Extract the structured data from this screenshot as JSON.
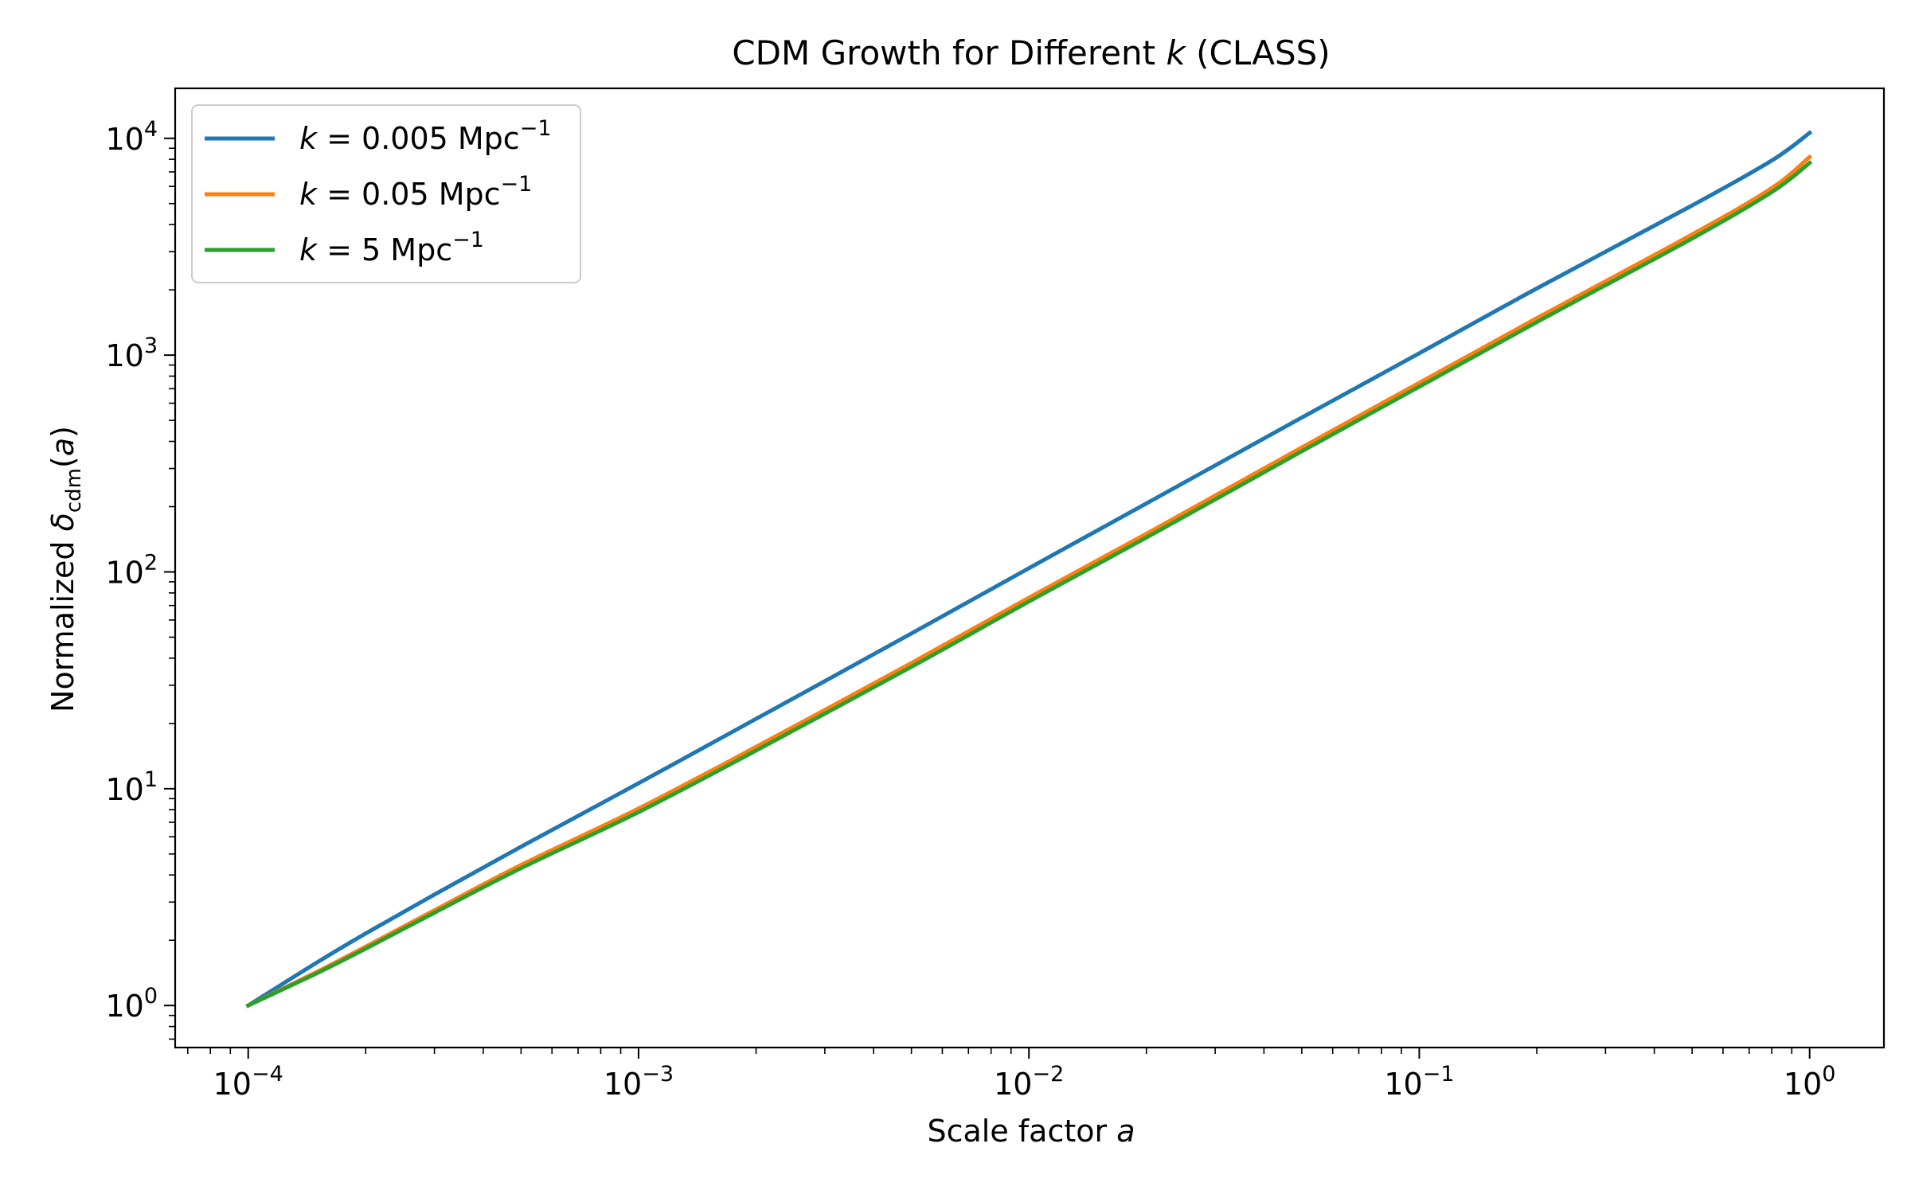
{
  "chart_data": {
    "type": "line",
    "title": {
      "pre": "CDM Growth for Different ",
      "var": "k",
      "post": " (CLASS)"
    },
    "xlabel": {
      "pre": "Scale factor ",
      "var": "a"
    },
    "ylabel": {
      "pre": "Normalized ",
      "sym": "δ",
      "sub": "cdm",
      "post": "(",
      "var": "a",
      "close": ")"
    },
    "xscale": "log",
    "yscale": "log",
    "xlim": [
      6.5e-05,
      1.55
    ],
    "ylim": [
      0.64,
      17000
    ],
    "x_ticks": [
      {
        "value": 0.0001,
        "base": "10",
        "exp": "−4"
      },
      {
        "value": 0.001,
        "base": "10",
        "exp": "−3"
      },
      {
        "value": 0.01,
        "base": "10",
        "exp": "−2"
      },
      {
        "value": 0.1,
        "base": "10",
        "exp": "−1"
      },
      {
        "value": 1,
        "base": "10",
        "exp": "0"
      }
    ],
    "y_ticks": [
      {
        "value": 1,
        "base": "10",
        "exp": "0"
      },
      {
        "value": 10,
        "base": "10",
        "exp": "1"
      },
      {
        "value": 100,
        "base": "10",
        "exp": "2"
      },
      {
        "value": 1000,
        "base": "10",
        "exp": "3"
      },
      {
        "value": 10000,
        "base": "10",
        "exp": "4"
      }
    ],
    "grid": false,
    "legend_position": "top-left",
    "series": [
      {
        "name": {
          "var": "k",
          "eq": " = ",
          "num": "0.005",
          "unit": " Mpc",
          "exp": "−1"
        },
        "color": "#1f77b4",
        "x": [
          0.0001,
          0.00015,
          0.0002,
          0.0003,
          0.0005,
          0.001,
          0.002,
          0.005,
          0.01,
          0.02,
          0.05,
          0.1,
          0.2,
          0.5,
          0.8,
          1.0
        ],
        "y": [
          1.0,
          1.58,
          2.15,
          3.25,
          5.4,
          10.6,
          21.0,
          52.0,
          104,
          207,
          515,
          1020,
          2030,
          4900,
          7900,
          10600
        ]
      },
      {
        "name": {
          "var": "k",
          "eq": " = ",
          "num": "0.05",
          "unit": " Mpc",
          "exp": "−1"
        },
        "color": "#ff7f0e",
        "x": [
          0.0001,
          0.00015,
          0.0002,
          0.0003,
          0.0005,
          0.001,
          0.002,
          0.005,
          0.01,
          0.02,
          0.05,
          0.1,
          0.2,
          0.5,
          0.8,
          1.0
        ],
        "y": [
          1.0,
          1.43,
          1.87,
          2.75,
          4.45,
          8.1,
          15.6,
          38.0,
          76,
          150,
          375,
          745,
          1480,
          3600,
          5900,
          8200
        ]
      },
      {
        "name": {
          "var": "k",
          "eq": " = ",
          "num": "5",
          "unit": " Mpc",
          "exp": "−1"
        },
        "color": "#2ca02c",
        "x": [
          0.0001,
          0.00015,
          0.0002,
          0.0003,
          0.0005,
          0.001,
          0.002,
          0.005,
          0.01,
          0.02,
          0.05,
          0.1,
          0.2,
          0.5,
          0.8,
          1.0
        ],
        "y": [
          1.0,
          1.41,
          1.83,
          2.68,
          4.3,
          7.8,
          15.0,
          36.5,
          73,
          144,
          360,
          715,
          1420,
          3450,
          5650,
          7700
        ]
      }
    ]
  }
}
